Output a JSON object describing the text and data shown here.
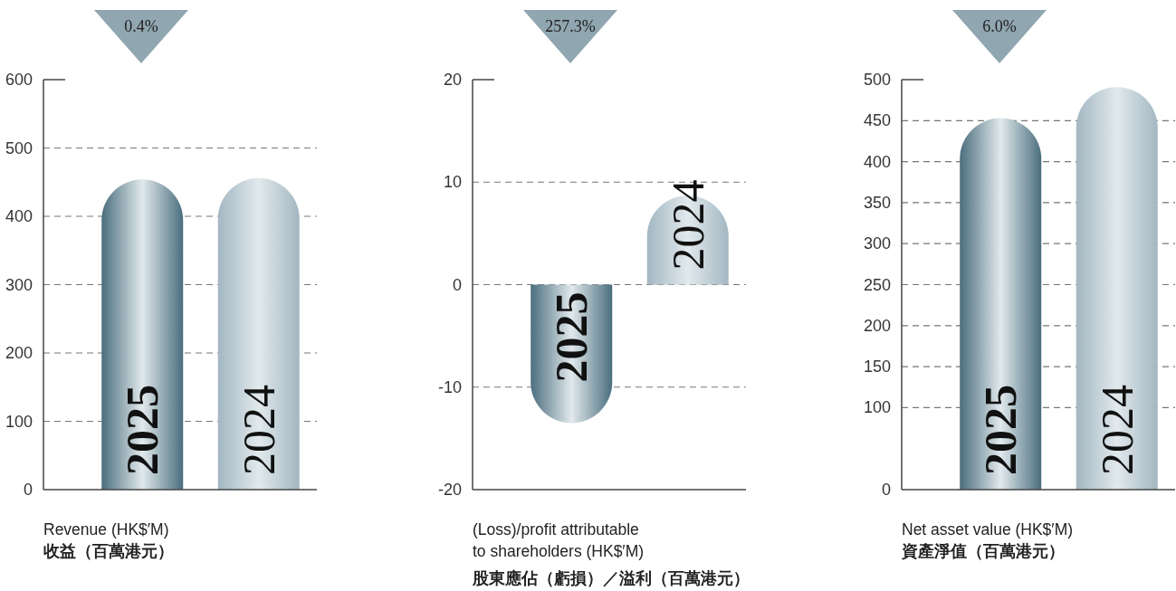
{
  "chart_data": [
    {
      "type": "bar",
      "xlabel": "Revenue (HK$′M)\n收益（百萬港元）",
      "annotations": [
        "0.4%"
      ],
      "categories": [
        "2025",
        "2024"
      ],
      "values": [
        454,
        456
      ],
      "colors": [
        "#4a6e7e",
        "#a3b7c2"
      ],
      "ylim": [
        0,
        600
      ],
      "yticks": [
        0,
        100,
        200,
        300,
        400,
        500,
        600
      ],
      "grid": "y"
    },
    {
      "type": "bar",
      "xlabel": "(Loss)/profit attributable\nto shareholders (HK$′M)\n股東應佔（虧損）／溢利（百萬港元）",
      "annotations": [
        "257.3%"
      ],
      "categories": [
        "2025",
        "2024"
      ],
      "values": [
        -13.5,
        8.7
      ],
      "colors": [
        "#4a6e7e",
        "#a3b7c2"
      ],
      "ylim": [
        -20,
        20
      ],
      "yticks": [
        -20,
        -10,
        0,
        10,
        20
      ],
      "grid": "y"
    },
    {
      "type": "bar",
      "xlabel": "Net asset value (HK$′M)\n資產淨值（百萬港元）",
      "annotations": [
        "6.0%"
      ],
      "categories": [
        "2025",
        "2024"
      ],
      "values": [
        453,
        491
      ],
      "colors": [
        "#4a6e7e",
        "#a3b7c2"
      ],
      "ylim": [
        0,
        500
      ],
      "yticks": [
        0,
        100,
        150,
        200,
        250,
        300,
        350,
        400,
        450,
        500
      ],
      "grid": "y"
    }
  ]
}
